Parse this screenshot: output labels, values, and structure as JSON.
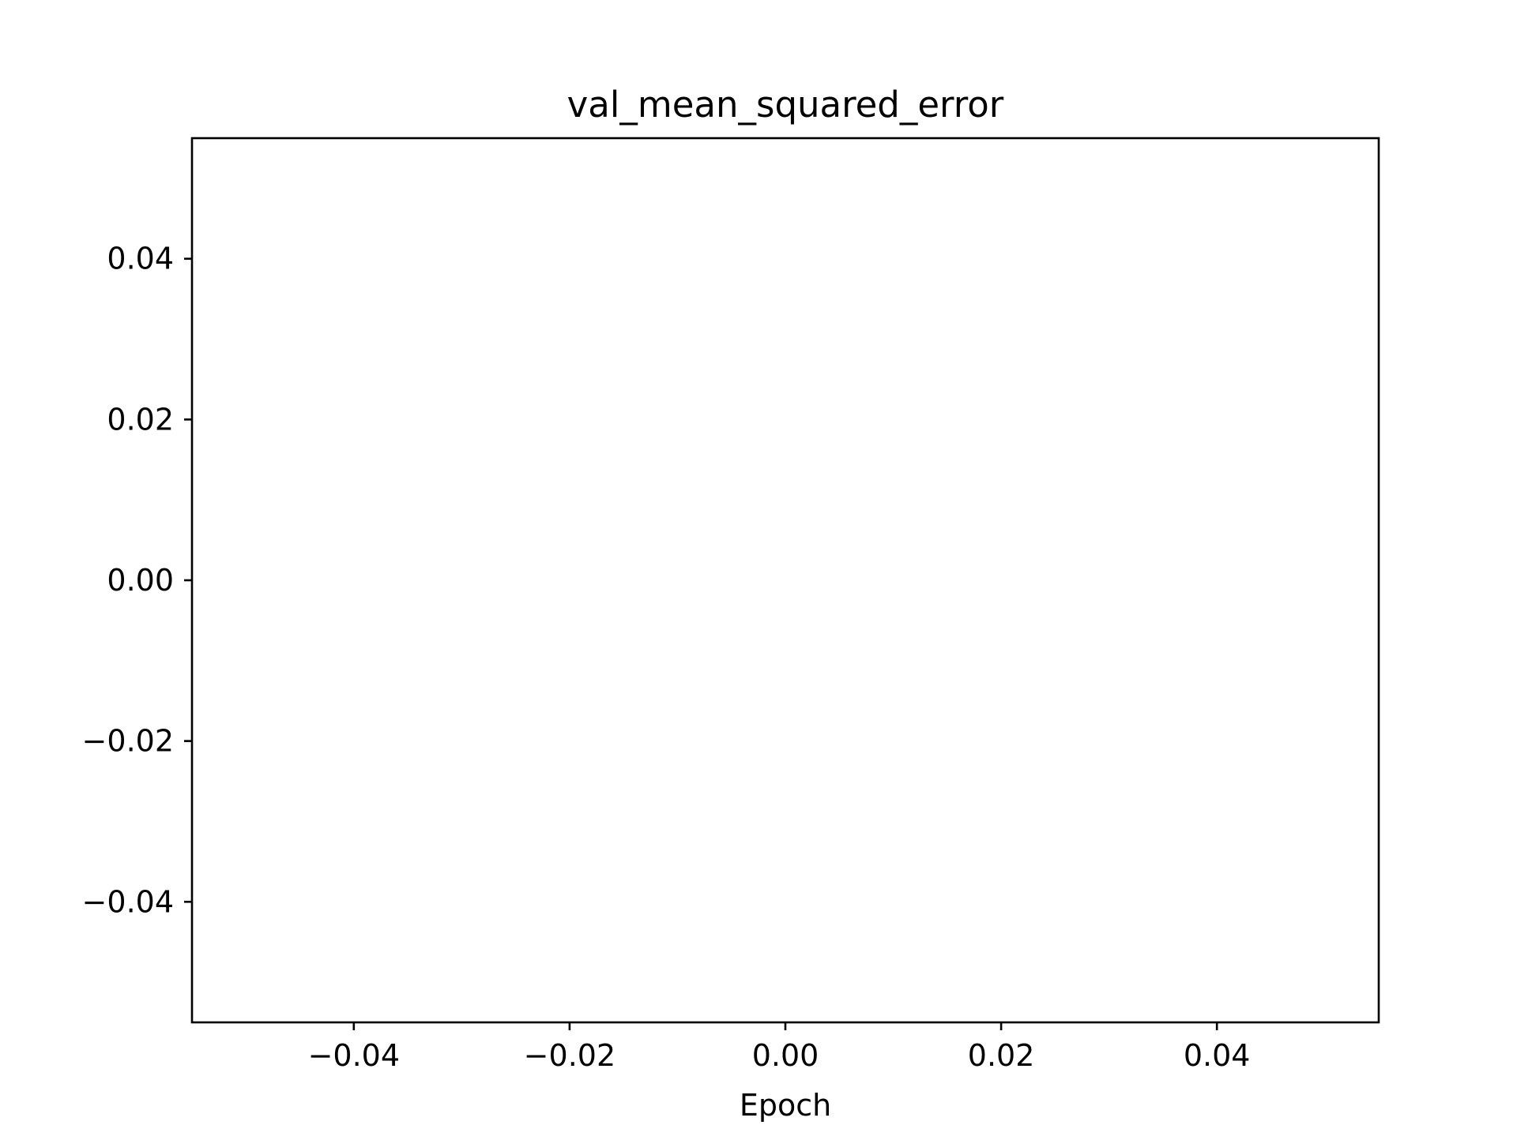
{
  "chart_data": {
    "type": "line",
    "title": "val_mean_squared_error",
    "xlabel": "Epoch",
    "ylabel": "",
    "series": [],
    "xlim": [
      -0.055,
      0.055
    ],
    "ylim": [
      -0.055,
      0.055
    ],
    "xticks": [
      -0.04,
      -0.02,
      0.0,
      0.02,
      0.04
    ],
    "yticks": [
      -0.04,
      -0.02,
      0.0,
      0.02,
      0.04
    ],
    "xtick_labels": [
      "−0.04",
      "−0.02",
      "0.00",
      "0.02",
      "0.04"
    ],
    "ytick_labels": [
      "−0.04",
      "−0.02",
      "0.00",
      "0.02",
      "0.04"
    ],
    "grid": false,
    "colors": {
      "axes": "#000000",
      "background": "#ffffff"
    }
  }
}
